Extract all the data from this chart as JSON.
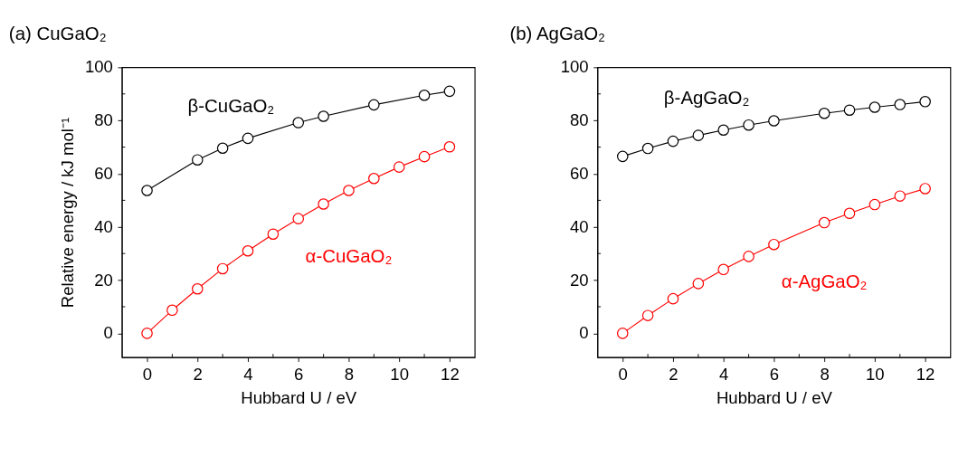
{
  "chart_data": [
    {
      "type": "line",
      "title": "(a) CuGaO₂",
      "xlabel": "Hubbard U / eV",
      "ylabel": "Relative energy / kJ mol⁻¹",
      "xlim": [
        -1,
        13
      ],
      "ylim": [
        -9,
        100
      ],
      "xticks": [
        0,
        {
          "value": 1,
          "label": null
        },
        2,
        {
          "value": 3,
          "label": null
        },
        4,
        {
          "value": 5,
          "label": null
        },
        6,
        {
          "value": 7,
          "label": null
        },
        8,
        {
          "value": 9,
          "label": null
        },
        10,
        {
          "value": 11,
          "label": null
        },
        12
      ],
      "yticks": [
        0,
        {
          "value": 10,
          "label": null
        },
        20,
        {
          "value": 30,
          "label": null
        },
        40,
        {
          "value": 50,
          "label": null
        },
        60,
        {
          "value": 70,
          "label": null
        },
        80,
        {
          "value": 90,
          "label": null
        },
        100
      ],
      "marker": "circle",
      "line_style": "solid",
      "grid": false,
      "legend": false,
      "series": [
        {
          "name": "β-CuGaO₂",
          "color": "#000000",
          "x": [
            0,
            2,
            3,
            4,
            6,
            7,
            9,
            11,
            12
          ],
          "values": [
            53.7,
            65.2,
            69.6,
            73.3,
            79.2,
            81.6,
            85.9,
            89.5,
            91.0
          ]
        },
        {
          "name": "α-CuGaO₂",
          "color": "#ff0000",
          "x": [
            0,
            1,
            2,
            3,
            4,
            5,
            6,
            7,
            8,
            9,
            10,
            11,
            12
          ],
          "values": [
            0,
            8.7,
            16.7,
            24.3,
            31.0,
            37.3,
            43.1,
            48.6,
            53.7,
            58.2,
            62.5,
            66.4,
            70.1
          ]
        }
      ]
    },
    {
      "type": "line",
      "title": "(b) AgGaO₂",
      "xlabel": "Hubbard U / eV",
      "xlim": [
        -1,
        13
      ],
      "ylim": [
        -9,
        100
      ],
      "xticks": [
        0,
        {
          "value": 1,
          "label": null
        },
        2,
        {
          "value": 3,
          "label": null
        },
        4,
        {
          "value": 5,
          "label": null
        },
        6,
        {
          "value": 7,
          "label": null
        },
        8,
        {
          "value": 9,
          "label": null
        },
        10,
        {
          "value": 11,
          "label": null
        },
        12
      ],
      "yticks": [
        0,
        {
          "value": 10,
          "label": null
        },
        20,
        {
          "value": 30,
          "label": null
        },
        40,
        {
          "value": 50,
          "label": null
        },
        60,
        {
          "value": 70,
          "label": null
        },
        80,
        {
          "value": 90,
          "label": null
        },
        100
      ],
      "marker": "circle",
      "line_style": "solid",
      "grid": false,
      "legend": false,
      "series": [
        {
          "name": "β-AgGaO₂",
          "color": "#000000",
          "x": [
            0,
            1,
            2,
            3,
            4,
            5,
            6,
            8,
            9,
            10,
            11,
            12
          ],
          "values": [
            66.5,
            69.5,
            72.2,
            74.4,
            76.4,
            78.3,
            79.9,
            82.7,
            83.9,
            85.0,
            86.0,
            87.1
          ]
        },
        {
          "name": "α-AgGaO₂",
          "color": "#ff0000",
          "x": [
            0,
            1,
            2,
            3,
            4,
            5,
            6,
            8,
            9,
            10,
            11,
            12
          ],
          "values": [
            0,
            6.7,
            13.0,
            18.7,
            24.0,
            28.9,
            33.4,
            41.6,
            45.1,
            48.4,
            51.6,
            54.4
          ]
        }
      ]
    }
  ]
}
